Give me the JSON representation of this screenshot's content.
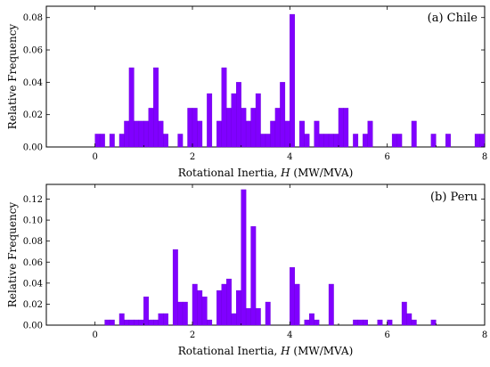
{
  "chart_data": [
    {
      "type": "bar",
      "title": "(a) Chile",
      "xlabel_prefix": "Rotational Inertia, ",
      "xlabel_var": "H",
      "xlabel_suffix": " (MW/MVA)",
      "ylabel": "Relative Frequency",
      "xlim": [
        -1,
        8
      ],
      "ylim": [
        0,
        0.087
      ],
      "xticks": [
        "0",
        "2",
        "4",
        "6",
        "8"
      ],
      "yticks": [
        "0.00",
        "0.02",
        "0.04",
        "0.06",
        "0.08"
      ],
      "bin_width": 0.1,
      "bars": [
        {
          "x": 0.0,
          "y": 0.008
        },
        {
          "x": 0.1,
          "y": 0.008
        },
        {
          "x": 0.3,
          "y": 0.008
        },
        {
          "x": 0.5,
          "y": 0.008
        },
        {
          "x": 0.6,
          "y": 0.016
        },
        {
          "x": 0.7,
          "y": 0.049
        },
        {
          "x": 0.8,
          "y": 0.016
        },
        {
          "x": 0.9,
          "y": 0.016
        },
        {
          "x": 1.0,
          "y": 0.016
        },
        {
          "x": 1.1,
          "y": 0.024
        },
        {
          "x": 1.2,
          "y": 0.049
        },
        {
          "x": 1.3,
          "y": 0.016
        },
        {
          "x": 1.4,
          "y": 0.008
        },
        {
          "x": 1.7,
          "y": 0.008
        },
        {
          "x": 1.9,
          "y": 0.024
        },
        {
          "x": 2.0,
          "y": 0.024
        },
        {
          "x": 2.1,
          "y": 0.016
        },
        {
          "x": 2.3,
          "y": 0.033
        },
        {
          "x": 2.5,
          "y": 0.016
        },
        {
          "x": 2.6,
          "y": 0.049
        },
        {
          "x": 2.7,
          "y": 0.024
        },
        {
          "x": 2.8,
          "y": 0.033
        },
        {
          "x": 2.9,
          "y": 0.04
        },
        {
          "x": 3.0,
          "y": 0.024
        },
        {
          "x": 3.1,
          "y": 0.016
        },
        {
          "x": 3.2,
          "y": 0.024
        },
        {
          "x": 3.3,
          "y": 0.033
        },
        {
          "x": 3.4,
          "y": 0.008
        },
        {
          "x": 3.5,
          "y": 0.008
        },
        {
          "x": 3.6,
          "y": 0.016
        },
        {
          "x": 3.7,
          "y": 0.024
        },
        {
          "x": 3.8,
          "y": 0.04
        },
        {
          "x": 3.9,
          "y": 0.016
        },
        {
          "x": 4.0,
          "y": 0.082
        },
        {
          "x": 4.2,
          "y": 0.016
        },
        {
          "x": 4.3,
          "y": 0.008
        },
        {
          "x": 4.5,
          "y": 0.016
        },
        {
          "x": 4.6,
          "y": 0.008
        },
        {
          "x": 4.7,
          "y": 0.008
        },
        {
          "x": 4.8,
          "y": 0.008
        },
        {
          "x": 4.9,
          "y": 0.008
        },
        {
          "x": 5.0,
          "y": 0.024
        },
        {
          "x": 5.1,
          "y": 0.024
        },
        {
          "x": 5.3,
          "y": 0.008
        },
        {
          "x": 5.5,
          "y": 0.008
        },
        {
          "x": 5.6,
          "y": 0.016
        },
        {
          "x": 6.1,
          "y": 0.008
        },
        {
          "x": 6.2,
          "y": 0.008
        },
        {
          "x": 6.5,
          "y": 0.016
        },
        {
          "x": 6.9,
          "y": 0.008
        },
        {
          "x": 7.2,
          "y": 0.008
        },
        {
          "x": 7.8,
          "y": 0.008
        },
        {
          "x": 7.9,
          "y": 0.008
        }
      ]
    },
    {
      "type": "bar",
      "title": "(b) Peru",
      "xlabel_prefix": "Rotational Inertia, ",
      "xlabel_var": "H",
      "xlabel_suffix": " (MW/MVA)",
      "ylabel": "Relative Frequency",
      "xlim": [
        -1,
        8
      ],
      "ylim": [
        0,
        0.134
      ],
      "xticks": [
        "0",
        "2",
        "4",
        "6",
        "8"
      ],
      "yticks": [
        "0.00",
        "0.02",
        "0.04",
        "0.06",
        "0.08",
        "0.10",
        "0.12"
      ],
      "bin_width": 0.1,
      "bars": [
        {
          "x": 0.2,
          "y": 0.005
        },
        {
          "x": 0.3,
          "y": 0.005
        },
        {
          "x": 0.5,
          "y": 0.011
        },
        {
          "x": 0.6,
          "y": 0.005
        },
        {
          "x": 0.7,
          "y": 0.005
        },
        {
          "x": 0.8,
          "y": 0.005
        },
        {
          "x": 0.9,
          "y": 0.005
        },
        {
          "x": 1.0,
          "y": 0.027
        },
        {
          "x": 1.1,
          "y": 0.005
        },
        {
          "x": 1.2,
          "y": 0.005
        },
        {
          "x": 1.3,
          "y": 0.011
        },
        {
          "x": 1.4,
          "y": 0.011
        },
        {
          "x": 1.6,
          "y": 0.072
        },
        {
          "x": 1.7,
          "y": 0.022
        },
        {
          "x": 1.8,
          "y": 0.022
        },
        {
          "x": 2.0,
          "y": 0.039
        },
        {
          "x": 2.1,
          "y": 0.033
        },
        {
          "x": 2.2,
          "y": 0.027
        },
        {
          "x": 2.3,
          "y": 0.005
        },
        {
          "x": 2.5,
          "y": 0.033
        },
        {
          "x": 2.6,
          "y": 0.039
        },
        {
          "x": 2.7,
          "y": 0.044
        },
        {
          "x": 2.8,
          "y": 0.011
        },
        {
          "x": 2.9,
          "y": 0.033
        },
        {
          "x": 3.0,
          "y": 0.129
        },
        {
          "x": 3.1,
          "y": 0.016
        },
        {
          "x": 3.2,
          "y": 0.094
        },
        {
          "x": 3.3,
          "y": 0.016
        },
        {
          "x": 3.5,
          "y": 0.022
        },
        {
          "x": 4.0,
          "y": 0.055
        },
        {
          "x": 4.1,
          "y": 0.039
        },
        {
          "x": 4.3,
          "y": 0.005
        },
        {
          "x": 4.4,
          "y": 0.011
        },
        {
          "x": 4.5,
          "y": 0.005
        },
        {
          "x": 4.8,
          "y": 0.039
        },
        {
          "x": 5.3,
          "y": 0.005
        },
        {
          "x": 5.4,
          "y": 0.005
        },
        {
          "x": 5.5,
          "y": 0.005
        },
        {
          "x": 5.8,
          "y": 0.005
        },
        {
          "x": 6.0,
          "y": 0.005
        },
        {
          "x": 6.3,
          "y": 0.022
        },
        {
          "x": 6.4,
          "y": 0.011
        },
        {
          "x": 6.5,
          "y": 0.005
        },
        {
          "x": 6.9,
          "y": 0.005
        }
      ]
    }
  ]
}
